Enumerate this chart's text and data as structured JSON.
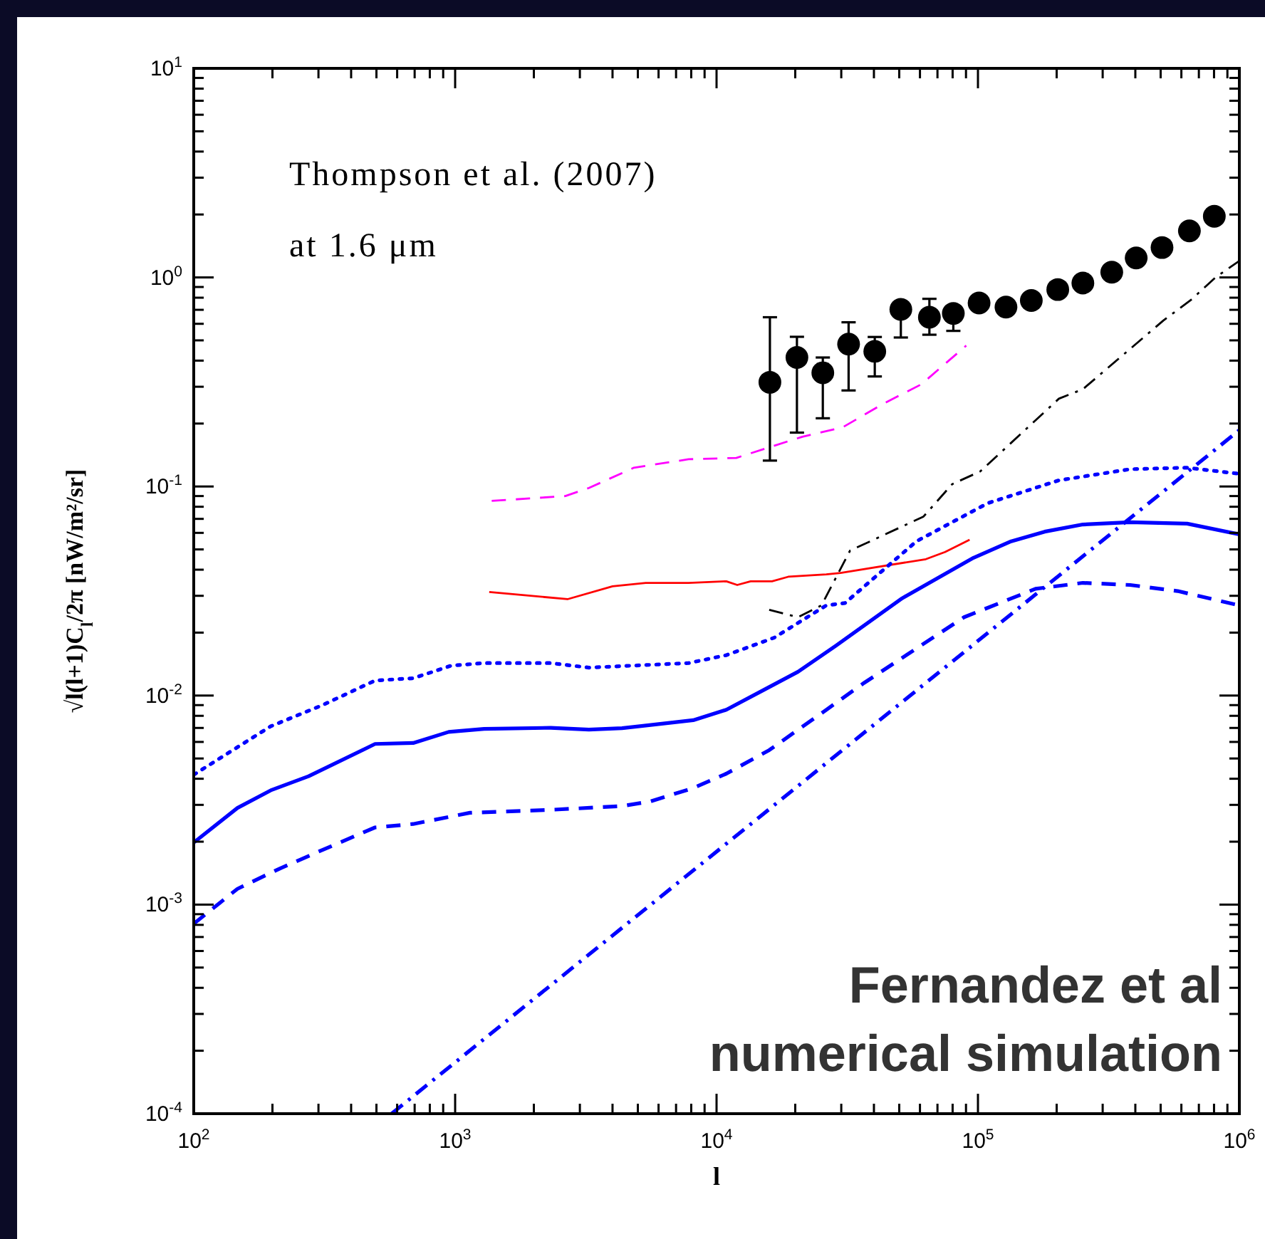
{
  "chart_data": {
    "type": "line",
    "xlabel": "l",
    "ylabel": "√l(l+1)C$_{l}$/2π [nW/m²/sr]",
    "log": "xy",
    "grid": false,
    "xlim": [
      100,
      1000000
    ],
    "ylim": [
      0.0001,
      10
    ],
    "xticks": [
      {
        "value": 100,
        "label": "10$^{2}$"
      },
      {
        "value": 200,
        "label": null
      },
      {
        "value": 300,
        "label": null
      },
      {
        "value": 400,
        "label": null
      },
      {
        "value": 500,
        "label": null
      },
      {
        "value": 600,
        "label": null
      },
      {
        "value": 700,
        "label": null
      },
      {
        "value": 800,
        "label": null
      },
      {
        "value": 900,
        "label": null
      },
      {
        "value": 1000,
        "label": "10$^{3}$"
      },
      {
        "value": 2000,
        "label": null
      },
      {
        "value": 3000,
        "label": null
      },
      {
        "value": 4000,
        "label": null
      },
      {
        "value": 5000,
        "label": null
      },
      {
        "value": 6000,
        "label": null
      },
      {
        "value": 7000,
        "label": null
      },
      {
        "value": 8000,
        "label": null
      },
      {
        "value": 9000,
        "label": null
      },
      {
        "value": 10000,
        "label": "10$^{4}$"
      },
      {
        "value": 20000,
        "label": null
      },
      {
        "value": 30000,
        "label": null
      },
      {
        "value": 40000,
        "label": null
      },
      {
        "value": 50000,
        "label": null
      },
      {
        "value": 60000,
        "label": null
      },
      {
        "value": 70000,
        "label": null
      },
      {
        "value": 80000,
        "label": null
      },
      {
        "value": 90000,
        "label": null
      },
      {
        "value": 100000,
        "label": "10$^{5}$"
      },
      {
        "value": 200000,
        "label": null
      },
      {
        "value": 300000,
        "label": null
      },
      {
        "value": 400000,
        "label": null
      },
      {
        "value": 500000,
        "label": null
      },
      {
        "value": 600000,
        "label": null
      },
      {
        "value": 700000,
        "label": null
      },
      {
        "value": 800000,
        "label": null
      },
      {
        "value": 900000,
        "label": null
      },
      {
        "value": 1000000,
        "label": "10$^{6}$"
      }
    ],
    "yticks": [
      {
        "value": 0.0001,
        "label": "10$^{-4}$"
      },
      {
        "value": 0.0002,
        "label": null
      },
      {
        "value": 0.0003,
        "label": null
      },
      {
        "value": 0.0004,
        "label": null
      },
      {
        "value": 0.0005,
        "label": null
      },
      {
        "value": 0.0006,
        "label": null
      },
      {
        "value": 0.0007,
        "label": null
      },
      {
        "value": 0.0008,
        "label": null
      },
      {
        "value": 0.0009,
        "label": null
      },
      {
        "value": 0.001,
        "label": "10$^{-3}$"
      },
      {
        "value": 0.002,
        "label": null
      },
      {
        "value": 0.003,
        "label": null
      },
      {
        "value": 0.004,
        "label": null
      },
      {
        "value": 0.005,
        "label": null
      },
      {
        "value": 0.006,
        "label": null
      },
      {
        "value": 0.007,
        "label": null
      },
      {
        "value": 0.008,
        "label": null
      },
      {
        "value": 0.009,
        "label": null
      },
      {
        "value": 0.01,
        "label": "10$^{-2}$"
      },
      {
        "value": 0.02,
        "label": null
      },
      {
        "value": 0.03,
        "label": null
      },
      {
        "value": 0.04,
        "label": null
      },
      {
        "value": 0.05,
        "label": null
      },
      {
        "value": 0.06,
        "label": null
      },
      {
        "value": 0.07,
        "label": null
      },
      {
        "value": 0.08,
        "label": null
      },
      {
        "value": 0.09,
        "label": null
      },
      {
        "value": 0.1,
        "label": "10$^{-1}$"
      },
      {
        "value": 0.2,
        "label": null
      },
      {
        "value": 0.3,
        "label": null
      },
      {
        "value": 0.4,
        "label": null
      },
      {
        "value": 0.5,
        "label": null
      },
      {
        "value": 0.6,
        "label": null
      },
      {
        "value": 0.7,
        "label": null
      },
      {
        "value": 0.8,
        "label": null
      },
      {
        "value": 0.9,
        "label": null
      },
      {
        "value": 1,
        "label": "10$^{0}$"
      },
      {
        "value": 2,
        "label": null
      },
      {
        "value": 3,
        "label": null
      },
      {
        "value": 4,
        "label": null
      },
      {
        "value": 5,
        "label": null
      },
      {
        "value": 6,
        "label": null
      },
      {
        "value": 7,
        "label": null
      },
      {
        "value": 8,
        "label": null
      },
      {
        "value": 9,
        "label": null
      },
      {
        "value": 10,
        "label": "10$^{1}$"
      }
    ],
    "annotations": [
      "Thompson et al. (2007)",
      "at 1.6 μm",
      "Fernandez et al\nnumerical simulation"
    ],
    "series": [
      {
        "color": "#ff00ff",
        "line_style": "dashed",
        "marker": "none",
        "x": [
          1380,
          2640,
          3250,
          4830,
          7820,
          11900,
          21300,
          30400,
          43500,
          60700,
          90200
        ],
        "values": [
          0.0853,
          0.09,
          0.0984,
          0.123,
          0.135,
          0.137,
          0.173,
          0.192,
          0.249,
          0.308,
          0.472
        ]
      },
      {
        "color": "#ff0000",
        "line_style": "solid",
        "marker": "none",
        "x": [
          1350,
          2690,
          4000,
          5360,
          7820,
          10900,
          12000,
          13500,
          16300,
          18800,
          26300,
          29800,
          63200,
          74800,
          92900
        ],
        "values": [
          0.0313,
          0.0289,
          0.0333,
          0.0346,
          0.0346,
          0.0352,
          0.0338,
          0.0352,
          0.0352,
          0.037,
          0.038,
          0.0386,
          0.0449,
          0.0486,
          0.0556
        ]
      },
      {
        "color": "#000000",
        "line_style": "dashdot",
        "marker": "none",
        "x": [
          15900,
          20500,
          25200,
          32400,
          61900,
          79700,
          102000,
          204000,
          252000,
          512000,
          658000,
          811000,
          1000000
        ],
        "values": [
          0.0257,
          0.0237,
          0.027,
          0.0493,
          0.0718,
          0.1026,
          0.118,
          0.263,
          0.292,
          0.622,
          0.787,
          1.0,
          1.2
        ]
      },
      {
        "color": "#0000ff",
        "line_style": "solid",
        "marker": "none",
        "x": [
          100,
          147,
          197,
          275,
          494,
          691,
          945,
          1290,
          2320,
          3250,
          4350,
          8140,
          10900,
          15300,
          20500,
          28600,
          51300,
          96200,
          134000,
          180000,
          252000,
          382000,
          631000,
          1000000
        ],
        "values": [
          0.00198,
          0.0029,
          0.00352,
          0.00411,
          0.00587,
          0.00593,
          0.0067,
          0.00693,
          0.00701,
          0.00687,
          0.00698,
          0.00762,
          0.00855,
          0.0107,
          0.013,
          0.0173,
          0.0292,
          0.0456,
          0.0547,
          0.0608,
          0.0658,
          0.0675,
          0.0664,
          0.059
        ]
      },
      {
        "color": "#0000ff",
        "line_style": "dotted",
        "marker": "none",
        "x": [
          100,
          141,
          197,
          312,
          494,
          691,
          966,
          1290,
          2320,
          3250,
          7820,
          10900,
          16600,
          26300,
          31000,
          58200,
          109000,
          204000,
          382000,
          631000,
          1000000
        ],
        "values": [
          0.00418,
          0.00548,
          0.00713,
          0.00902,
          0.0118,
          0.0121,
          0.0139,
          0.0143,
          0.0143,
          0.0136,
          0.0143,
          0.0156,
          0.0189,
          0.027,
          0.0277,
          0.0547,
          0.0832,
          0.107,
          0.121,
          0.123,
          0.115
        ]
      },
      {
        "color": "#0000ff",
        "line_style": "dashed",
        "marker": "none",
        "x": [
          100,
          147,
          214,
          312,
          494,
          691,
          1140,
          2320,
          4350,
          5600,
          8140,
          10900,
          15900,
          26300,
          36700,
          88500,
          166000,
          252000,
          382000,
          581000,
          1000000
        ],
        "values": [
          0.00081,
          0.00119,
          0.00149,
          0.00183,
          0.00234,
          0.00243,
          0.00275,
          0.00284,
          0.00296,
          0.00312,
          0.00361,
          0.00423,
          0.00548,
          0.00855,
          0.0115,
          0.0237,
          0.0324,
          0.0346,
          0.0338,
          0.0316,
          0.027
        ]
      },
      {
        "color": "#0000ff",
        "line_style": "dashdot",
        "marker": "none",
        "x": [
          571,
          1000000
        ],
        "values": [
          0.0001,
          0.186
        ]
      },
      {
        "type": "scatter",
        "color": "#000000",
        "marker": "circle",
        "x": [
          16000,
          20300,
          25500,
          32000,
          40300,
          50700,
          65200,
          80500,
          101000,
          128000,
          160000,
          202000,
          252000,
          325000,
          403000,
          506000,
          644000,
          802000
        ],
        "values": [
          0.315,
          0.414,
          0.35,
          0.48,
          0.443,
          0.703,
          0.645,
          0.673,
          0.755,
          0.721,
          0.776,
          0.875,
          0.94,
          1.06,
          1.24,
          1.39,
          1.67,
          1.96
        ],
        "errors": [
          [
            0.133,
            0.645
          ],
          [
            0.181,
            0.52
          ],
          [
            0.212,
            0.414
          ],
          [
            0.288,
            0.61
          ],
          [
            0.336,
            0.519
          ],
          [
            0.516,
            0.703
          ],
          [
            0.532,
            0.79
          ],
          [
            0.555,
            0.673
          ],
          null,
          null,
          null,
          null,
          null,
          null,
          null,
          null,
          null,
          null
        ]
      }
    ]
  }
}
